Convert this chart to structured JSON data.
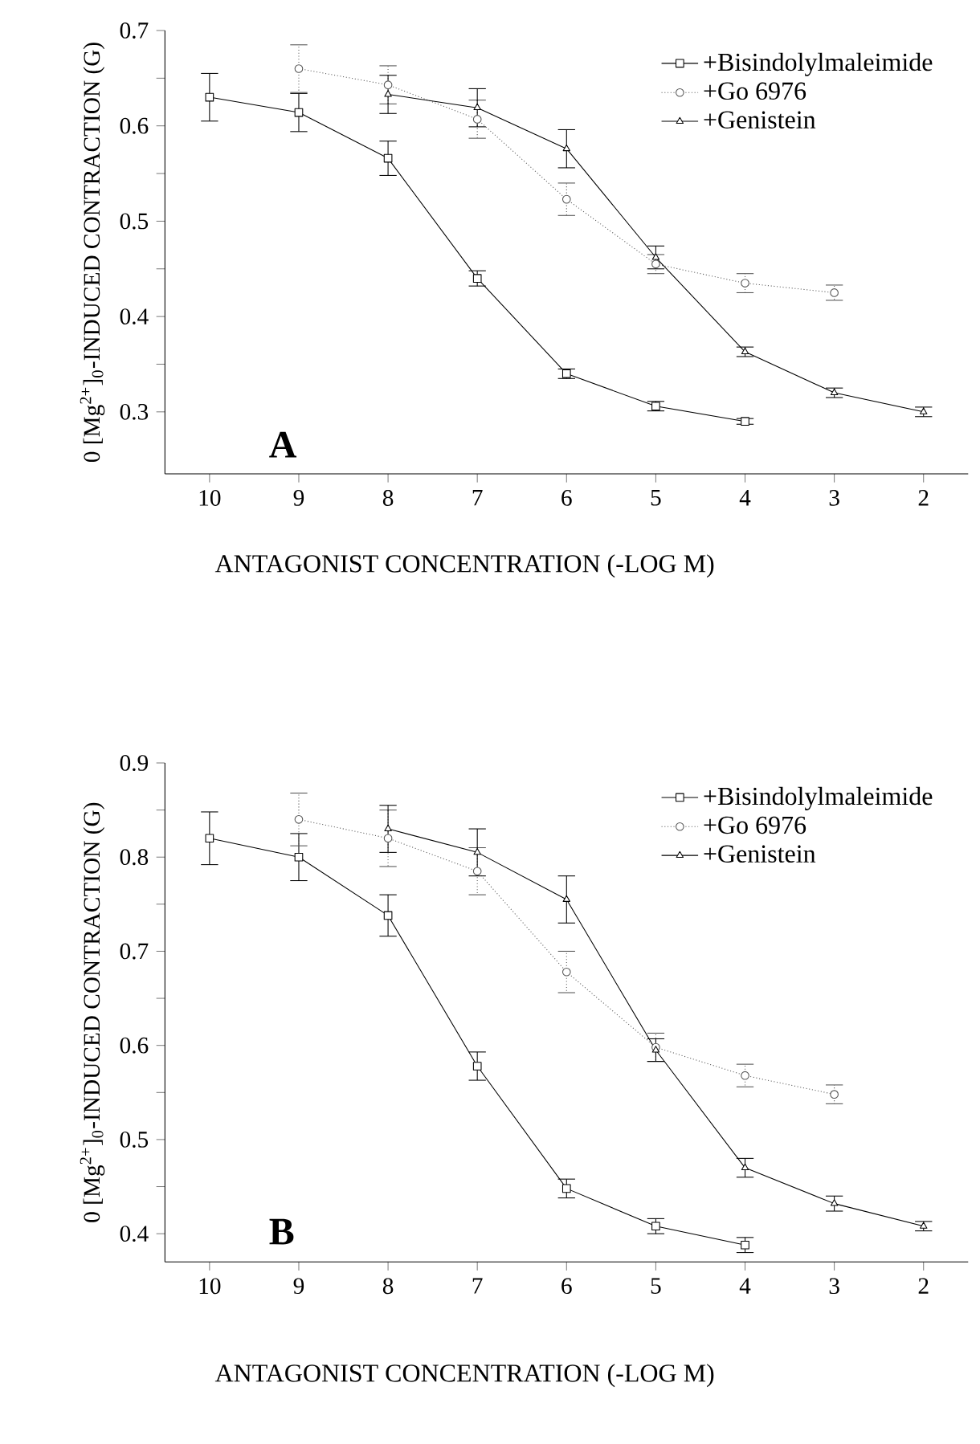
{
  "chart_data": [
    {
      "type": "line",
      "ylabel": "0 [Mg$^{2+}$]$_{0}$-INDUCED CONTRACTION (G)",
      "xlabel": "ANTAGONIST CONCENTRATION (-LOG M)",
      "annotations": [
        "A"
      ],
      "legend": "top right",
      "xlim": [
        10.5,
        1.5
      ],
      "xticks": [
        10,
        9,
        8,
        7,
        6,
        5,
        4,
        3,
        2
      ],
      "ylim": [
        0.235,
        0.7
      ],
      "yticks": [
        0.3,
        {
          "value": 0.35,
          "label": null
        },
        0.4,
        {
          "value": 0.45,
          "label": null
        },
        0.5,
        {
          "value": 0.55,
          "label": null
        },
        0.6,
        {
          "value": 0.65,
          "label": null
        },
        0.7
      ],
      "series": [
        {
          "name": "+Bisindolylmaleimide",
          "color": "#000000",
          "marker": "square",
          "line_style": "solid",
          "x": [
            10,
            9,
            8,
            7,
            6,
            5,
            4
          ],
          "values": [
            0.63,
            0.614,
            0.566,
            0.44,
            0.34,
            0.306,
            0.29
          ],
          "errors": [
            0.025,
            0.02,
            0.018,
            0.008,
            0.005,
            0.005,
            0.003
          ]
        },
        {
          "name": "+Go 6976",
          "color": "#555555",
          "marker": "circle",
          "line_style": "dotted",
          "x": [
            9,
            8,
            7,
            6,
            5,
            4,
            3
          ],
          "values": [
            0.66,
            0.643,
            0.607,
            0.523,
            0.455,
            0.435,
            0.425
          ],
          "errors": [
            0.025,
            0.02,
            0.02,
            0.017,
            0.01,
            0.01,
            0.008
          ]
        },
        {
          "name": "+Genistein",
          "color": "#000000",
          "marker": "triangle",
          "line_style": "solid",
          "x": [
            8,
            7,
            6,
            5,
            4,
            3,
            2
          ],
          "values": [
            0.633,
            0.619,
            0.576,
            0.462,
            0.363,
            0.32,
            0.3
          ],
          "errors": [
            0.02,
            0.02,
            0.02,
            0.012,
            0.005,
            0.005,
            0.005
          ]
        }
      ]
    },
    {
      "type": "line",
      "ylabel": "0 [Mg$^{2+}$]$_{0}$-INDUCED CONTRACTION (G)",
      "xlabel": "ANTAGONIST CONCENTRATION (-LOG M)",
      "annotations": [
        "B"
      ],
      "legend": "top right",
      "xlim": [
        10.5,
        1.5
      ],
      "xticks": [
        10,
        9,
        8,
        7,
        6,
        5,
        4,
        3,
        2
      ],
      "ylim": [
        0.37,
        0.9
      ],
      "yticks": [
        0.4,
        {
          "value": 0.45,
          "label": null
        },
        0.5,
        {
          "value": 0.55,
          "label": null
        },
        0.6,
        {
          "value": 0.65,
          "label": null
        },
        0.7,
        {
          "value": 0.75,
          "label": null
        },
        0.8,
        {
          "value": 0.85,
          "label": null
        },
        0.9
      ],
      "series": [
        {
          "name": "+Bisindolylmaleimide",
          "color": "#000000",
          "marker": "square",
          "line_style": "solid",
          "x": [
            10,
            9,
            8,
            7,
            6,
            5,
            4
          ],
          "values": [
            0.82,
            0.8,
            0.738,
            0.578,
            0.448,
            0.408,
            0.388
          ],
          "errors": [
            0.028,
            0.025,
            0.022,
            0.015,
            0.01,
            0.008,
            0.008
          ]
        },
        {
          "name": "+Go 6976",
          "color": "#555555",
          "marker": "circle",
          "line_style": "dotted",
          "x": [
            9,
            8,
            7,
            6,
            5,
            4,
            3
          ],
          "values": [
            0.84,
            0.82,
            0.785,
            0.678,
            0.598,
            0.568,
            0.548
          ],
          "errors": [
            0.028,
            0.03,
            0.025,
            0.022,
            0.015,
            0.012,
            0.01
          ]
        },
        {
          "name": "+Genistein",
          "color": "#000000",
          "marker": "triangle",
          "line_style": "solid",
          "x": [
            8,
            7,
            6,
            5,
            4,
            3,
            2
          ],
          "values": [
            0.83,
            0.805,
            0.755,
            0.595,
            0.47,
            0.432,
            0.408
          ],
          "errors": [
            0.025,
            0.025,
            0.025,
            0.012,
            0.01,
            0.008,
            0.005
          ]
        }
      ]
    }
  ]
}
